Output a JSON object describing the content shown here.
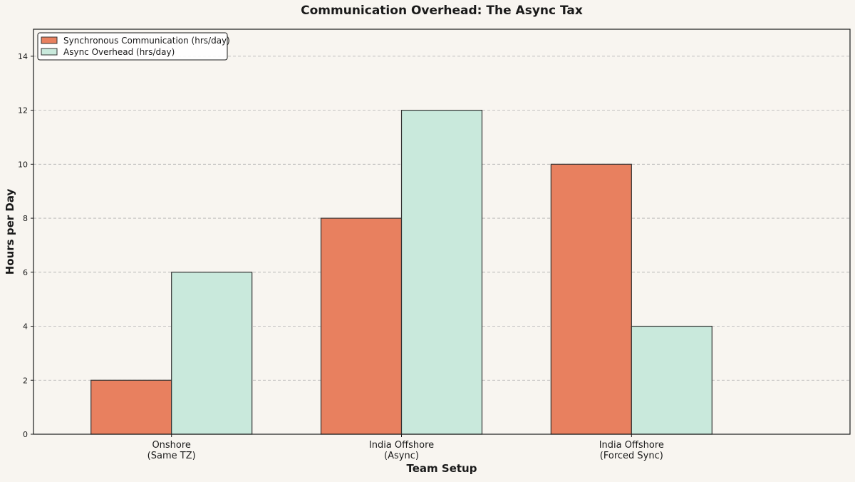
{
  "chart_data": {
    "type": "bar",
    "title": "Communication Overhead: The Async Tax",
    "xlabel": "Team Setup",
    "ylabel": "Hours per Day",
    "categories": [
      [
        "Onshore",
        "(Same TZ)"
      ],
      [
        "India Offshore",
        "(Async)"
      ],
      [
        "India Offshore",
        "(Forced Sync)"
      ]
    ],
    "series": [
      {
        "name": "Synchronous Communication (hrs/day)",
        "values": [
          2,
          8,
          10
        ],
        "color": "#e8805f",
        "edge_color": "#333333"
      },
      {
        "name": "Async Overhead (hrs/day)",
        "values": [
          6,
          12,
          4
        ],
        "color": "#c9e9dc",
        "edge_color": "#333333"
      }
    ],
    "ylim": [
      0,
      15
    ],
    "yticks": [
      0,
      2,
      4,
      6,
      8,
      10,
      12,
      14
    ],
    "grid": "y-dashed",
    "legend": "upper-left",
    "background": "#f8f5f0"
  }
}
